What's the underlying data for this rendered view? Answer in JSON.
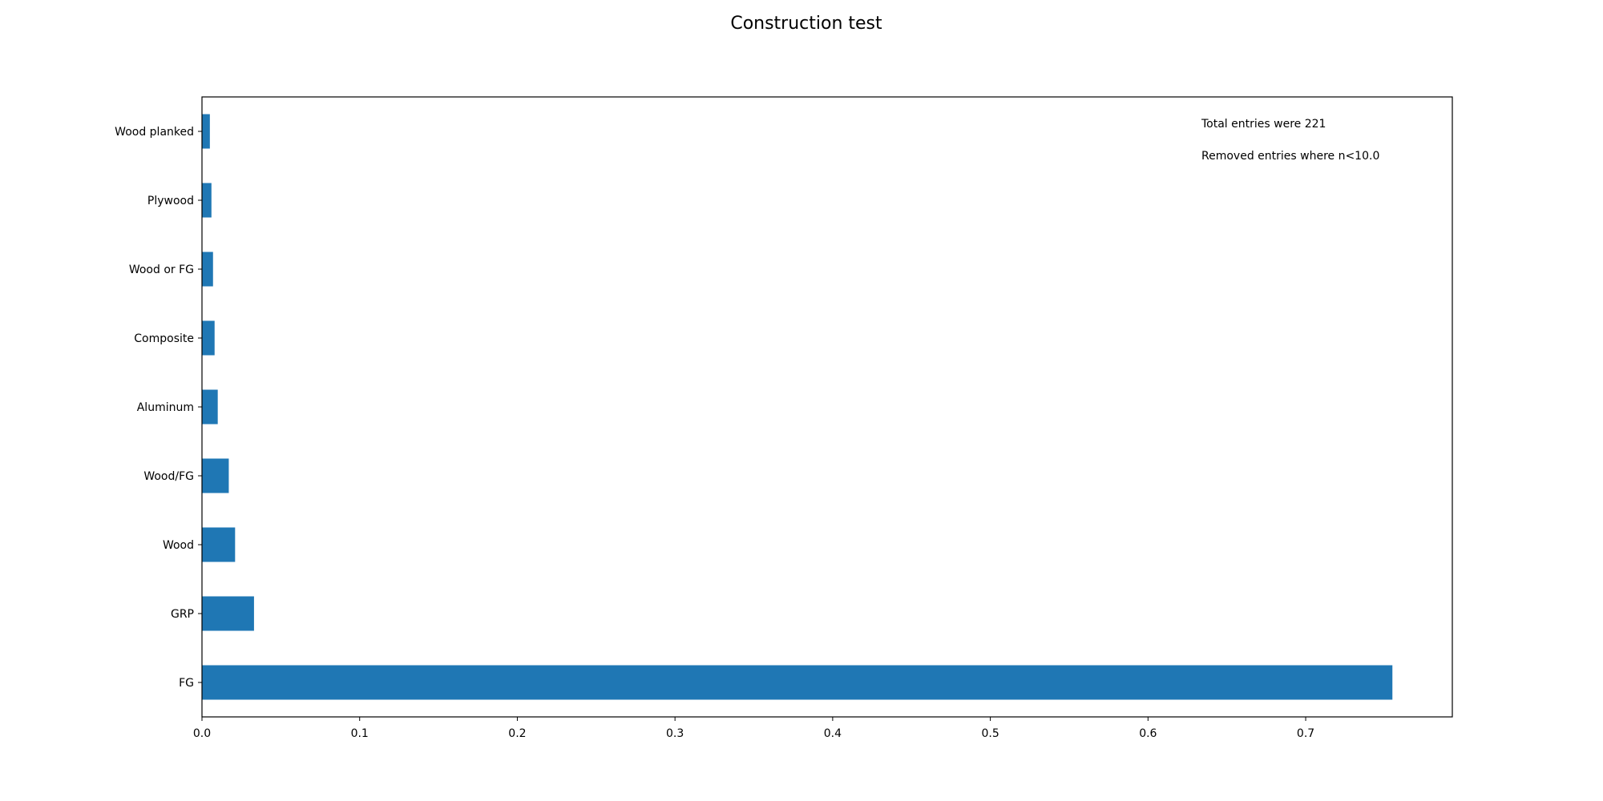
{
  "chart_data": {
    "type": "bar",
    "orientation": "horizontal",
    "title": "Construction test",
    "xlabel": "",
    "ylabel": "",
    "categories": [
      "FG",
      "GRP",
      "Wood",
      "Wood/FG",
      "Aluminum",
      "Composite",
      "Wood or FG",
      "Plywood",
      "Wood planked"
    ],
    "values": [
      0.755,
      0.033,
      0.021,
      0.017,
      0.01,
      0.008,
      0.007,
      0.006,
      0.005
    ],
    "xlim": [
      0,
      0.793
    ],
    "xticks": [
      0.0,
      0.1,
      0.2,
      0.3,
      0.4,
      0.5,
      0.6,
      0.7
    ],
    "xtick_labels": [
      "0.0",
      "0.1",
      "0.2",
      "0.3",
      "0.4",
      "0.5",
      "0.6",
      "0.7"
    ],
    "bar_color": "#1f77b4",
    "grid": false,
    "annotations": [
      "Total entries were 221",
      "Removed entries where n<10.0"
    ]
  }
}
